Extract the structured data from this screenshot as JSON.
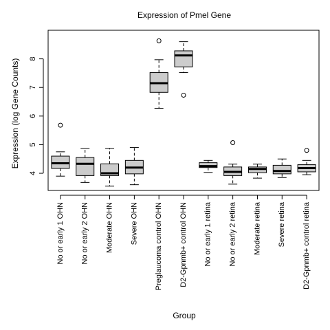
{
  "chart_data": {
    "type": "boxplot",
    "title": "Expression of  Pmel Gene",
    "xlabel": "Group",
    "ylabel": "Expression (log Gene Counts)",
    "ylim": [
      3.4,
      9.0
    ],
    "yticks": [
      4,
      5,
      6,
      7,
      8
    ],
    "ytick_labels": [
      "4",
      "5",
      "6",
      "7",
      "8"
    ],
    "grid": false,
    "colors": {
      "box_fill": "#cccccc",
      "stroke": "#000000"
    },
    "categories": [
      "No or early 1 OHN",
      "No or early 2 OHN",
      "Moderate OHN",
      "Severe OHN",
      "Preglaucoma control OHN",
      "D2-Gpnmb+ control OHN",
      "No or early 1 retina",
      "No or early 2 retina",
      "Moderate retina",
      "Severe retina",
      "D2-Gpnmb+ control retina"
    ],
    "boxes": [
      {
        "whisker_low": 3.9,
        "q1": 4.17,
        "median": 4.35,
        "q3": 4.6,
        "whisker_high": 4.75,
        "outliers": [
          5.68
        ]
      },
      {
        "whisker_low": 3.68,
        "q1": 3.92,
        "median": 4.33,
        "q3": 4.55,
        "whisker_high": 4.87,
        "outliers": []
      },
      {
        "whisker_low": 3.55,
        "q1": 3.92,
        "median": 4.0,
        "q3": 4.33,
        "whisker_high": 4.87,
        "outliers": []
      },
      {
        "whisker_low": 3.6,
        "q1": 3.98,
        "median": 4.2,
        "q3": 4.45,
        "whisker_high": 4.9,
        "outliers": []
      },
      {
        "whisker_low": 6.27,
        "q1": 6.83,
        "median": 7.15,
        "q3": 7.52,
        "whisker_high": 7.97,
        "outliers": [
          8.63
        ]
      },
      {
        "whisker_low": 7.52,
        "q1": 7.72,
        "median": 8.12,
        "q3": 8.28,
        "whisker_high": 8.6,
        "outliers": [
          6.73
        ]
      },
      {
        "whisker_low": 4.03,
        "q1": 4.2,
        "median": 4.25,
        "q3": 4.37,
        "whisker_high": 4.45,
        "outliers": []
      },
      {
        "whisker_low": 3.62,
        "q1": 3.92,
        "median": 4.05,
        "q3": 4.22,
        "whisker_high": 4.32,
        "outliers": [
          5.07
        ]
      },
      {
        "whisker_low": 3.83,
        "q1": 4.02,
        "median": 4.15,
        "q3": 4.22,
        "whisker_high": 4.32,
        "outliers": []
      },
      {
        "whisker_low": 3.85,
        "q1": 3.98,
        "median": 4.08,
        "q3": 4.28,
        "whisker_high": 4.5,
        "outliers": []
      },
      {
        "whisker_low": 3.95,
        "q1": 4.05,
        "median": 4.18,
        "q3": 4.3,
        "whisker_high": 4.45,
        "outliers": [
          4.8
        ]
      }
    ]
  }
}
